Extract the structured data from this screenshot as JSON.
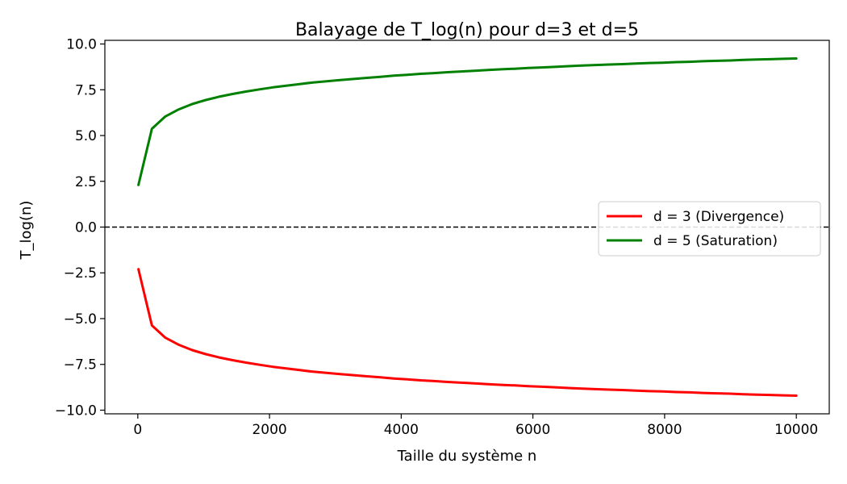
{
  "chart_data": {
    "type": "line",
    "title": "Balayage de T_log(n) pour d=3 et d=5",
    "xlabel": "Taille du système n",
    "ylabel": "T_log(n)",
    "xlim": [
      -500,
      10500
    ],
    "ylim": [
      -10.2,
      10.2
    ],
    "xticks": [
      0,
      2000,
      4000,
      6000,
      8000,
      10000
    ],
    "xtick_labels": [
      "0",
      "2000",
      "4000",
      "6000",
      "8000",
      "10000"
    ],
    "yticks": [
      -10.0,
      -7.5,
      -5.0,
      -2.5,
      0.0,
      2.5,
      5.0,
      7.5,
      10.0
    ],
    "ytick_labels": [
      "−10.0",
      "−7.5",
      "−5.0",
      "−2.5",
      "0.0",
      "2.5",
      "5.0",
      "7.5",
      "10.0"
    ],
    "reference_line": {
      "y": 0.0,
      "style": "dashed",
      "color": "#000000"
    },
    "grid": false,
    "legend": {
      "position": "center-right"
    },
    "x": [
      10,
      214,
      418,
      622,
      826,
      1031,
      1235,
      1439,
      1643,
      1847,
      2051,
      2255,
      2459,
      2663,
      2867,
      3072,
      3276,
      3480,
      3684,
      3888,
      4092,
      4296,
      4500,
      4704,
      4908,
      5112,
      5317,
      5521,
      5725,
      5929,
      6133,
      6337,
      6541,
      6745,
      6949,
      7153,
      7358,
      7562,
      7766,
      7970,
      8174,
      8378,
      8582,
      8786,
      8990,
      9194,
      9399,
      9603,
      9807,
      10000
    ],
    "series": [
      {
        "name": "d = 3 (Divergence)",
        "color": "#ff0000",
        "values": [
          -2.3,
          -5.37,
          -6.04,
          -6.43,
          -6.72,
          -6.94,
          -7.12,
          -7.27,
          -7.4,
          -7.52,
          -7.63,
          -7.72,
          -7.81,
          -7.9,
          -7.96,
          -8.03,
          -8.09,
          -8.15,
          -8.21,
          -8.27,
          -8.32,
          -8.37,
          -8.41,
          -8.46,
          -8.5,
          -8.54,
          -8.58,
          -8.62,
          -8.65,
          -8.69,
          -8.72,
          -8.75,
          -8.79,
          -8.82,
          -8.85,
          -8.88,
          -8.9,
          -8.93,
          -8.96,
          -8.98,
          -9.01,
          -9.03,
          -9.06,
          -9.08,
          -9.1,
          -9.13,
          -9.15,
          -9.17,
          -9.19,
          -9.21
        ]
      },
      {
        "name": "d = 5 (Saturation)",
        "color": "#008000",
        "values": [
          2.3,
          5.37,
          6.04,
          6.43,
          6.72,
          6.94,
          7.12,
          7.27,
          7.4,
          7.52,
          7.63,
          7.72,
          7.81,
          7.9,
          7.96,
          8.03,
          8.09,
          8.15,
          8.21,
          8.27,
          8.32,
          8.37,
          8.41,
          8.46,
          8.5,
          8.54,
          8.58,
          8.62,
          8.65,
          8.69,
          8.72,
          8.75,
          8.79,
          8.82,
          8.85,
          8.88,
          8.9,
          8.93,
          8.96,
          8.98,
          9.01,
          9.03,
          9.06,
          9.08,
          9.1,
          9.13,
          9.15,
          9.17,
          9.19,
          9.21
        ]
      }
    ]
  }
}
